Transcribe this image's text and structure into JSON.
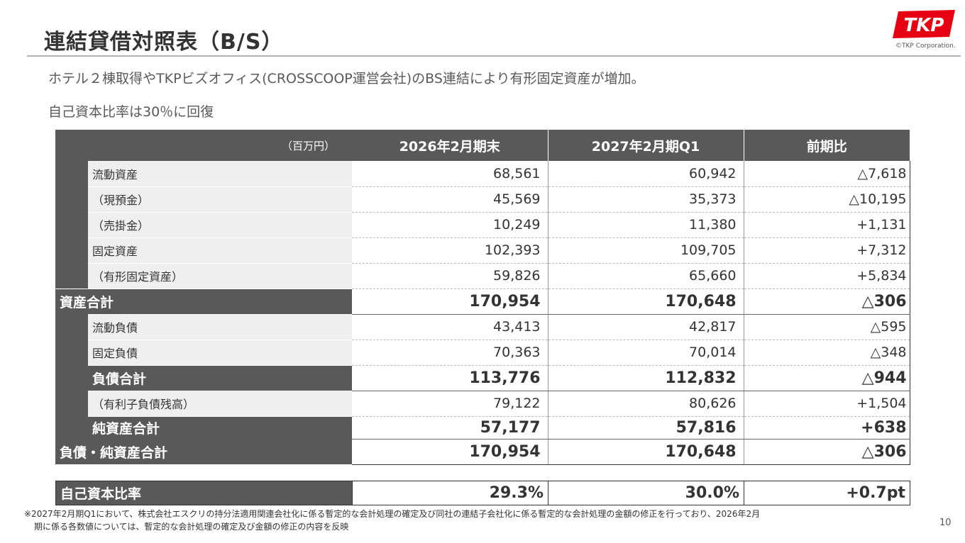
{
  "header": {
    "title": "連結貸借対照表（B/S）",
    "logo_text": "TKP",
    "copyright": "©TKP Corporation."
  },
  "lead": {
    "line1": "ホテル２棟取得やTKPビズオフィス(CROSSCOOP運営会社)のBS連結により有形固定資産が増加。",
    "line2": "自己資本比率は30％に回復"
  },
  "table": {
    "unit": "（百万円）",
    "columns": [
      "2026年2月期末",
      "2027年2月期Q1",
      "前期比"
    ],
    "rows": [
      {
        "label": "流動資産",
        "v1": "68,561",
        "v2": "60,942",
        "diff": "△7,618"
      },
      {
        "label": "（現預金）",
        "v1": "45,569",
        "v2": "35,373",
        "diff": "△10,195"
      },
      {
        "label": "（売掛金）",
        "v1": "10,249",
        "v2": "11,380",
        "diff": "+1,131"
      },
      {
        "label": "固定資産",
        "v1": "102,393",
        "v2": "109,705",
        "diff": "+7,312"
      },
      {
        "label": "（有形固定資産）",
        "v1": "59,826",
        "v2": "65,660",
        "diff": "+5,834"
      },
      {
        "label": "資産合計",
        "v1": "170,954",
        "v2": "170,648",
        "diff": "△306"
      },
      {
        "label": "流動負債",
        "v1": "43,413",
        "v2": "42,817",
        "diff": "△595"
      },
      {
        "label": "固定負債",
        "v1": "70,363",
        "v2": "70,014",
        "diff": "△348"
      },
      {
        "label": "負債合計",
        "v1": "113,776",
        "v2": "112,832",
        "diff": "△944"
      },
      {
        "label": "（有利子負債残高）",
        "v1": "79,122",
        "v2": "80,626",
        "diff": "+1,504"
      },
      {
        "label": "純資産合計",
        "v1": "57,177",
        "v2": "57,816",
        "diff": "+638"
      },
      {
        "label": "負債・純資産合計",
        "v1": "170,954",
        "v2": "170,648",
        "diff": "△306"
      }
    ],
    "ratio": {
      "label": "自己資本比率",
      "v1": "29.3%",
      "v2": "30.0%",
      "diff": "+0.7pt"
    }
  },
  "footnote": {
    "line1": "※2027年2月期Q1において、株式会社エスクリの持分法適用関連会社化に係る暫定的な会計処理の確定及び同社の連結子会社化に係る暫定的な会計処理の金額の修正を行っており、2026年2月",
    "line2": "期に係る各数値については、暫定的な会計処理の確定及び金額の修正の内容を反映"
  },
  "page_number": "10",
  "colors": {
    "header_bg": "#595959",
    "label_bg": "#efefef",
    "logo_red": "#e60012"
  }
}
